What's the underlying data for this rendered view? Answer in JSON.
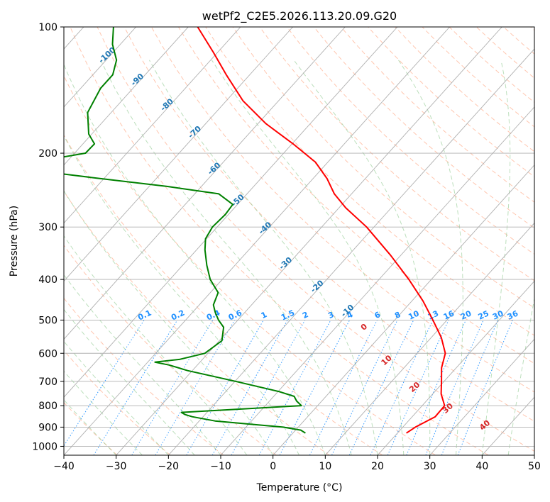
{
  "chart_data": {
    "type": "skew-t",
    "title": "wetPf2_C2E5.2026.113.20.09.G20",
    "xlabel": "Temperature (°C)",
    "ylabel": "Pressure (hPa)",
    "xlim": [
      -40,
      50
    ],
    "ylim_hpa": [
      1050,
      100
    ],
    "x_ticks": [
      -40,
      -30,
      -20,
      -10,
      0,
      10,
      20,
      30,
      40,
      50
    ],
    "x_tick_labels": [
      "−40",
      "−30",
      "−20",
      "−10",
      "0",
      "10",
      "20",
      "30",
      "40",
      "50"
    ],
    "y_ticks": [
      1000,
      900,
      800,
      700,
      600,
      500,
      400,
      300,
      200,
      100
    ],
    "y_tick_labels": [
      "1000",
      "900",
      "800",
      "700",
      "600",
      "500",
      "400",
      "300",
      "200",
      "100"
    ],
    "colors": {
      "temperature": "#ff0000",
      "dewpoint": "#008000",
      "isotherm": "#b0b0b0",
      "dry_adiabat": "#ffa07a",
      "moist_adiabat": "#90c990",
      "mixing_ratio": "#1e90ff",
      "dry_label": "#1f77b4",
      "moist_label": "#d62728"
    },
    "series": [
      {
        "name": "Temperature",
        "pressure": [
          930,
          900,
          850,
          800,
          750,
          700,
          650,
          600,
          550,
          500,
          450,
          400,
          350,
          300,
          270,
          250,
          230,
          210,
          190,
          170,
          150,
          130,
          115,
          100
        ],
        "values": [
          21.7,
          22.4,
          24.4,
          24.3,
          21.6,
          19.5,
          17.2,
          15.4,
          11.9,
          7.3,
          2.1,
          -4.3,
          -12.0,
          -21.4,
          -28.7,
          -33.3,
          -37.3,
          -42.4,
          -49.8,
          -58.5,
          -66.8,
          -74.5,
          -80.8,
          -88.2
        ]
      },
      {
        "name": "Dewpoint",
        "pressure": [
          930,
          915,
          900,
          870,
          850,
          840,
          830,
          800,
          780,
          760,
          740,
          700,
          660,
          640,
          630,
          620,
          600,
          560,
          520,
          500,
          480,
          460,
          430,
          400,
          370,
          340,
          320,
          300,
          280,
          265,
          250,
          240,
          230,
          220,
          213,
          208,
          200,
          190,
          180,
          160,
          140,
          130,
          120,
          110,
          100
        ],
        "values": [
          2.4,
          1.0,
          -2.9,
          -17.0,
          -22.1,
          -23.8,
          -24.9,
          -3.1,
          -4.8,
          -6.1,
          -9.9,
          -19.9,
          -30.9,
          -35.4,
          -38.6,
          -34.3,
          -30.6,
          -29.5,
          -31.5,
          -33.7,
          -35.6,
          -37.3,
          -38.5,
          -42.3,
          -45.4,
          -48.4,
          -50.2,
          -50.9,
          -50.6,
          -50.9,
          -55.4,
          -66.6,
          -80.5,
          -94.6,
          -98.4,
          -94.6,
          -87.9,
          -87.8,
          -90.6,
          -94.5,
          -96.2,
          -96.2,
          -98.0,
          -101.5,
          -104.3
        ]
      }
    ],
    "background": {
      "dry_adiabat_labels": [
        "-100",
        "-90",
        "-80",
        "-70",
        "-60",
        "-50",
        "-40",
        "-30",
        "-20",
        "-10"
      ],
      "moist_adiabat_labels": [
        "0",
        "10",
        "20",
        "30",
        "40"
      ],
      "mixing_ratio_labels": [
        "0.1",
        "0.2",
        "0.4",
        "0.6",
        "1",
        "1.5",
        "2",
        "3",
        "4",
        "6",
        "8",
        "10",
        "13",
        "16",
        "20",
        "25",
        "30",
        "36"
      ]
    }
  }
}
